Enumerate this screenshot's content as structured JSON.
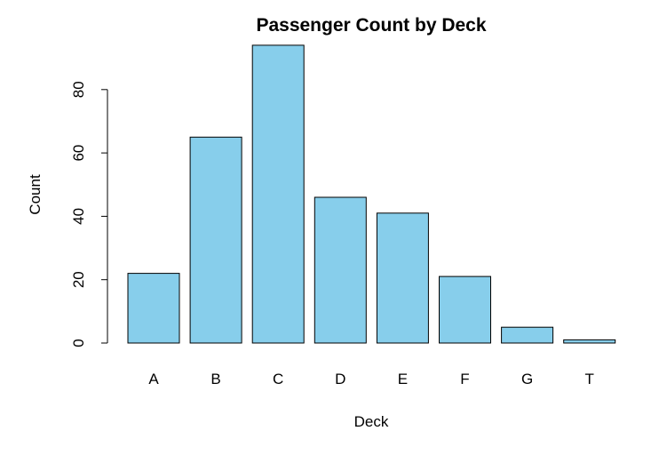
{
  "chart_data": {
    "type": "bar",
    "title": "Passenger Count by Deck",
    "xlabel": "Deck",
    "ylabel": "Count",
    "categories": [
      "A",
      "B",
      "C",
      "D",
      "E",
      "F",
      "G",
      "T"
    ],
    "values": [
      22,
      65,
      94,
      46,
      41,
      21,
      5,
      1
    ],
    "yticks": [
      0,
      20,
      40,
      60,
      80
    ],
    "ylim": [
      0,
      94
    ],
    "grid": false,
    "bar_color": "#87CEEB",
    "border_color": "#000000"
  }
}
